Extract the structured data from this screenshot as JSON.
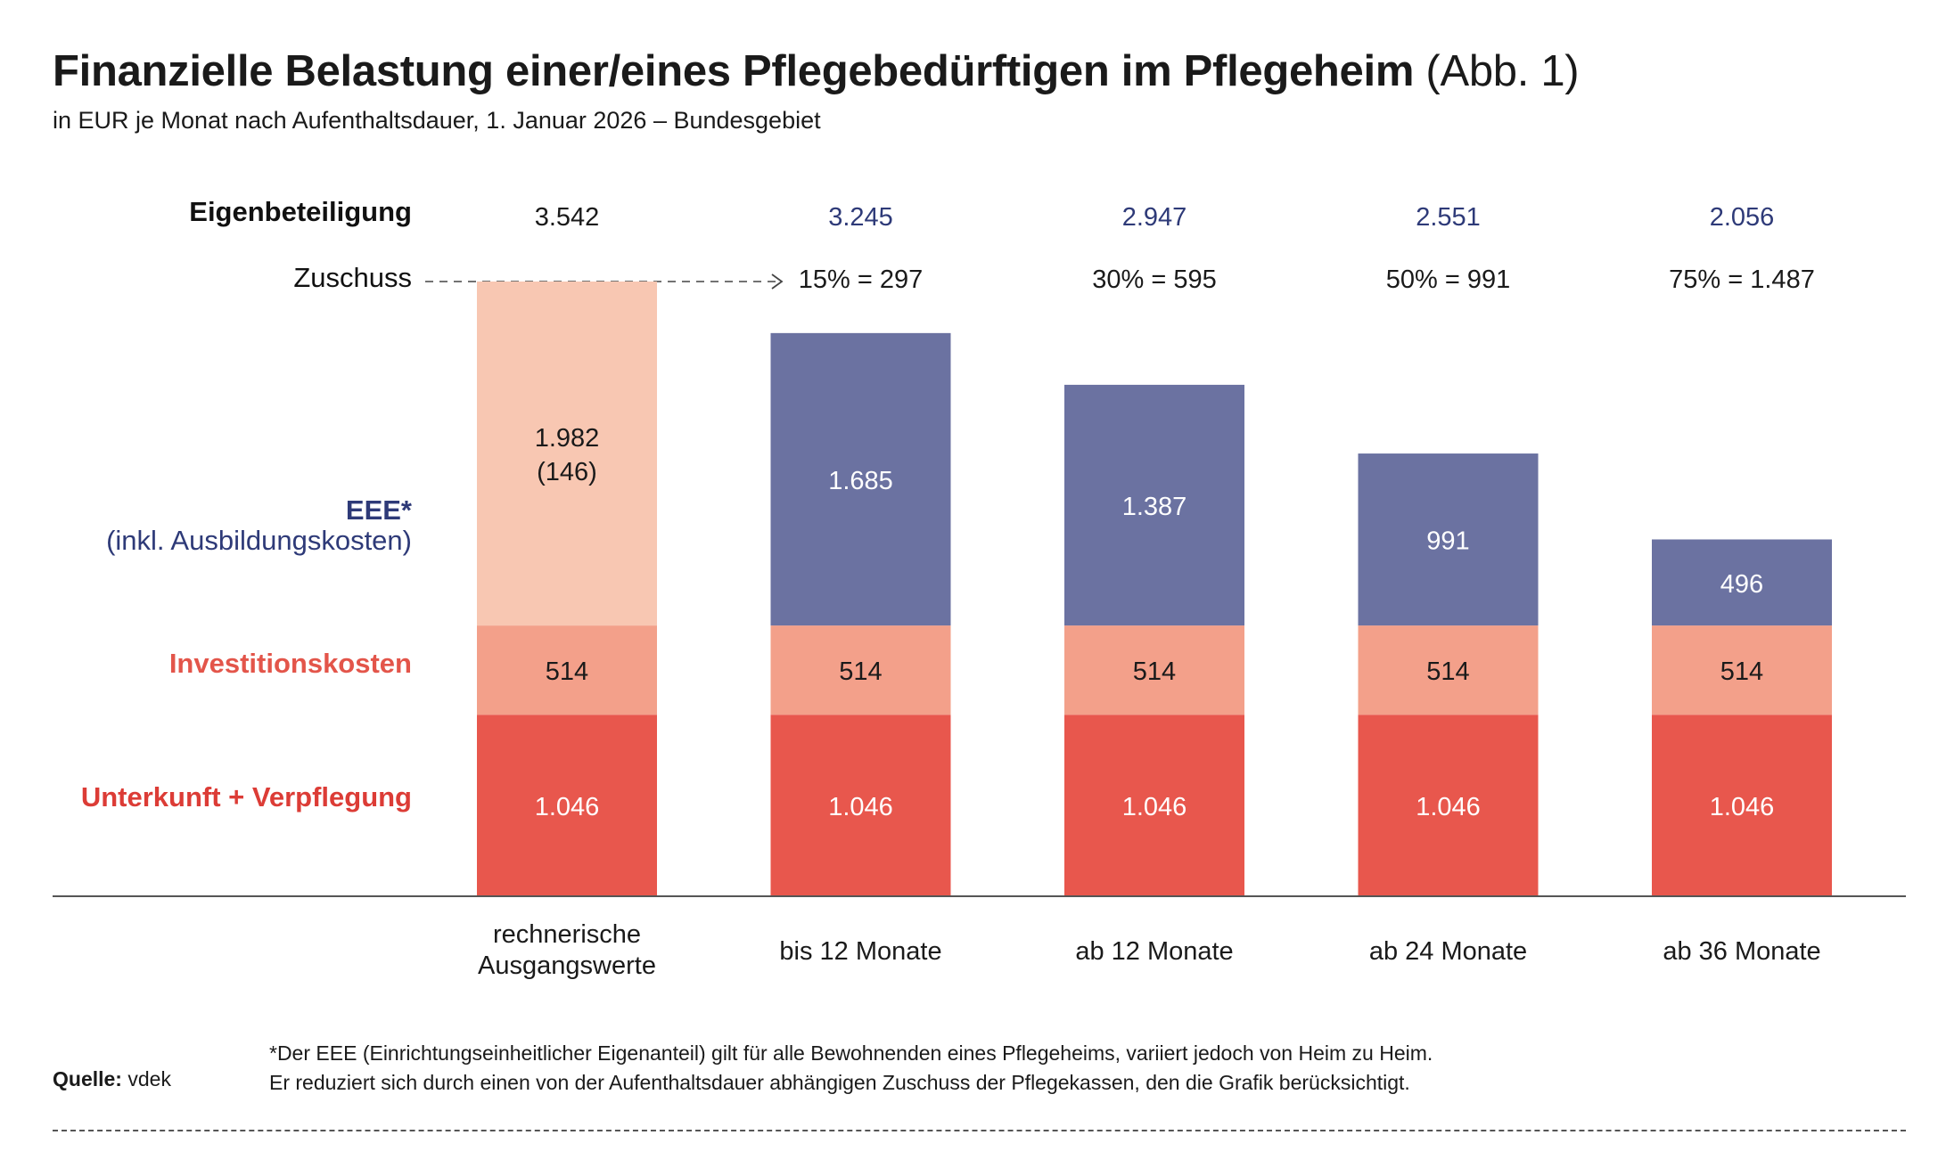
{
  "header": {
    "title": "Finanzielle Belastung einer/eines Pflegebedürftigen im Pflegeheim",
    "figure_ref": "(Abb. 1)",
    "subtitle": "in EUR je Monat nach Aufenthaltsdauer, 1. Januar 2026 – Bundesgebiet"
  },
  "row_labels": {
    "eigenbeteiligung": "Eigenbeteiligung",
    "zuschuss": "Zuschuss"
  },
  "legend": {
    "eee_title": "EEE*",
    "eee_sub": "(inkl. Ausbildungskosten)",
    "investitionskosten": "Investitionskosten",
    "unterkunft": "Unterkunft + Verpflegung"
  },
  "colors": {
    "unterkunft": "#e8574d",
    "investition": "#f3a08a",
    "eee": "#6b72a1",
    "eee_baseline": "#f8c7b2",
    "navy_text": "#2e3a78",
    "red_text": "#dc3c36",
    "orange_text": "#e3554a"
  },
  "chart_data": {
    "type": "bar",
    "stacked": true,
    "categories": [
      "rechnerische Ausgangswerte",
      "bis 12 Monate",
      "ab 12 Monate",
      "ab 24 Monate",
      "ab 36 Monate"
    ],
    "series": [
      {
        "name": "Unterkunft + Verpflegung",
        "values": [
          1046,
          1046,
          1046,
          1046,
          1046
        ]
      },
      {
        "name": "Investitionskosten",
        "values": [
          514,
          514,
          514,
          514,
          514
        ]
      },
      {
        "name": "EEE* (inkl. Ausbildungskosten)",
        "values": [
          1982,
          1685,
          1387,
          991,
          496
        ]
      }
    ],
    "value_labels": {
      "unterkunft": [
        "1.046",
        "1.046",
        "1.046",
        "1.046",
        "1.046"
      ],
      "investition": [
        "514",
        "514",
        "514",
        "514",
        "514"
      ],
      "eee": [
        "1.982",
        "1.685",
        "1.387",
        "991",
        "496"
      ],
      "eee_extra": "(146)"
    },
    "eigenbeteiligung": [
      3542,
      3245,
      2947,
      2551,
      2056
    ],
    "eigenbeteiligung_labels": [
      "3.542",
      "3.245",
      "2.947",
      "2.551",
      "2.056"
    ],
    "zuschuss_labels": [
      "15% = 297",
      "30% = 595",
      "50% = 991",
      "75% = 1.487"
    ],
    "ylim": [
      0,
      3542
    ],
    "grid": false,
    "legend": "left"
  },
  "footnote": {
    "line1": "*Der EEE (Einrichtungseinheitlicher Eigenanteil) gilt für alle Bewohnenden eines Pflegeheims, variiert jedoch von Heim zu Heim.",
    "line2": "Er reduziert sich durch einen von der Aufenthaltsdauer abhängigen Zuschuss der Pflegekassen, den die Grafik berücksichtigt."
  },
  "source": {
    "label": "Quelle:",
    "value": "vdek"
  }
}
